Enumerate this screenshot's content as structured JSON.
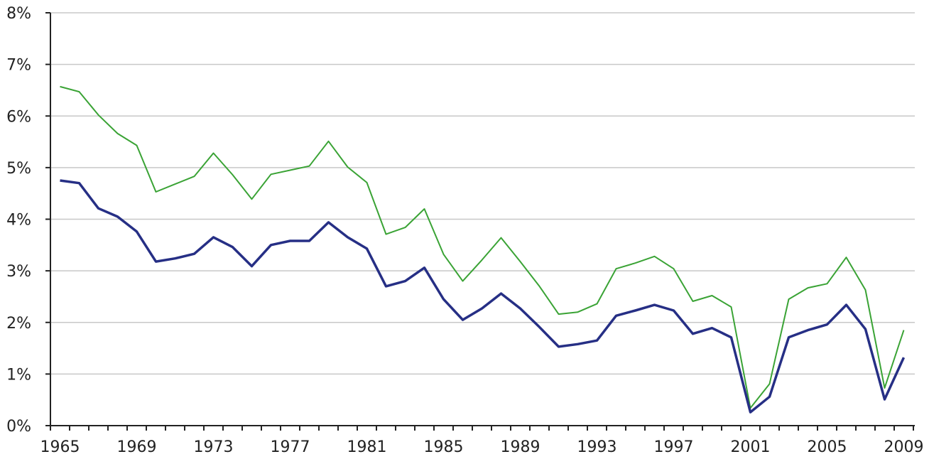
{
  "chart_data": {
    "type": "line",
    "title": "",
    "xlabel": "",
    "ylabel": "",
    "ylim": [
      0,
      8
    ],
    "yticks": [
      "0%",
      "1%",
      "2%",
      "3%",
      "4%",
      "5%",
      "6%",
      "7%",
      "8%"
    ],
    "xtick_labels": [
      "1965",
      "1969",
      "1973",
      "1977",
      "1981",
      "1985",
      "1989",
      "1993",
      "1997",
      "2001",
      "2005",
      "2009"
    ],
    "grid": "horizontal",
    "x": [
      1965,
      1966,
      1967,
      1968,
      1969,
      1970,
      1971,
      1972,
      1973,
      1974,
      1975,
      1976,
      1977,
      1978,
      1979,
      1980,
      1981,
      1982,
      1983,
      1984,
      1985,
      1986,
      1987,
      1988,
      1989,
      1990,
      1991,
      1992,
      1993,
      1994,
      1995,
      1996,
      1997,
      1998,
      1999,
      2000,
      2001,
      2002,
      2003,
      2004,
      2005,
      2006,
      2007,
      2008,
      2009
    ],
    "series": [
      {
        "color": "#3aa335",
        "values": [
          6.57,
          6.47,
          6.02,
          5.66,
          5.43,
          4.53,
          4.68,
          4.83,
          5.28,
          4.86,
          4.39,
          4.87,
          4.95,
          5.03,
          5.51,
          5.01,
          4.71,
          3.71,
          3.84,
          4.2,
          3.32,
          2.8,
          3.21,
          3.64,
          3.18,
          2.7,
          2.16,
          2.2,
          2.36,
          3.04,
          3.15,
          3.28,
          3.04,
          2.41,
          2.52,
          2.3,
          0.34,
          0.81,
          2.45,
          2.67,
          2.75,
          3.26,
          2.63,
          0.73,
          1.85
        ]
      },
      {
        "color": "#262f85",
        "values": [
          4.75,
          4.7,
          4.21,
          4.05,
          3.76,
          3.18,
          3.24,
          3.33,
          3.65,
          3.46,
          3.09,
          3.5,
          3.58,
          3.58,
          3.94,
          3.65,
          3.43,
          2.7,
          2.8,
          3.06,
          2.45,
          2.05,
          2.27,
          2.56,
          2.27,
          1.91,
          1.53,
          1.58,
          1.65,
          2.13,
          2.23,
          2.34,
          2.23,
          1.78,
          1.89,
          1.71,
          0.26,
          0.56,
          1.71,
          1.85,
          1.96,
          2.34,
          1.87,
          0.51,
          1.32
        ]
      }
    ]
  }
}
